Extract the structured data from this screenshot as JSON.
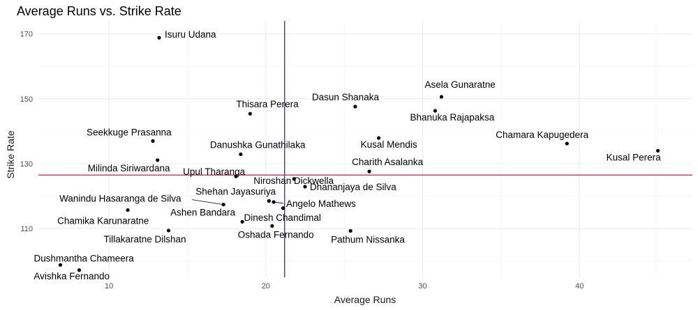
{
  "chart_data": {
    "type": "scatter",
    "title": "Average Runs vs. Strike Rate",
    "xlabel": "Average Runs",
    "ylabel": "Strike Rate",
    "xlim": [
      5.5,
      47.2
    ],
    "ylim": [
      95,
      174
    ],
    "x_ticks": [
      10,
      20,
      30,
      40
    ],
    "y_ticks": [
      110,
      130,
      150,
      170
    ],
    "grid": true,
    "reference_lines": [
      {
        "orientation": "vertical",
        "value": 21.2,
        "color": "#1f1f8f"
      },
      {
        "orientation": "horizontal",
        "value": 126.5,
        "color": "#c0223b"
      }
    ],
    "points": [
      {
        "name": "Isuru Udana",
        "x": 13.2,
        "y": 168.8
      },
      {
        "name": "Asela Gunaratne",
        "x": 31.2,
        "y": 150.6
      },
      {
        "name": "Dasun Shanaka",
        "x": 25.7,
        "y": 147.6
      },
      {
        "name": "Bhanuka Rajapaksa",
        "x": 30.8,
        "y": 146.3
      },
      {
        "name": "Thisara Perera",
        "x": 19.0,
        "y": 145.4
      },
      {
        "name": "Kusal Mendis",
        "x": 27.2,
        "y": 137.9
      },
      {
        "name": "Seekkuge Prasanna",
        "x": 12.8,
        "y": 137.0
      },
      {
        "name": "Chamara Kapugedera",
        "x": 39.2,
        "y": 136.2
      },
      {
        "name": "Kusal Perera",
        "x": 45.0,
        "y": 134.0
      },
      {
        "name": "Danushka Gunathilaka",
        "x": 18.4,
        "y": 132.9
      },
      {
        "name": "Milinda Siriwardana",
        "x": 13.1,
        "y": 131.1
      },
      {
        "name": "Charith Asalanka",
        "x": 26.6,
        "y": 127.6
      },
      {
        "name": "Upul Tharanga",
        "x": 18.1,
        "y": 126.1
      },
      {
        "name": "Niroshan Dickwella",
        "x": 21.8,
        "y": 125.3
      },
      {
        "name": "Dhananjaya de Silva",
        "x": 22.5,
        "y": 122.9
      },
      {
        "name": "Shehan Jayasuriya",
        "x": 20.2,
        "y": 118.5
      },
      {
        "name": "Angelo Mathews",
        "x": 20.5,
        "y": 118.2
      },
      {
        "name": "Wanindu Hasaranga de Silva",
        "x": 17.3,
        "y": 117.4
      },
      {
        "name": "Dinesh Chandimal",
        "x": 21.1,
        "y": 116.3
      },
      {
        "name": "Chamika Karunaratne",
        "x": 11.2,
        "y": 115.7
      },
      {
        "name": "Ashen Bandara",
        "x": 18.5,
        "y": 112.1
      },
      {
        "name": "Oshada Fernando",
        "x": 20.4,
        "y": 110.8
      },
      {
        "name": "Pathum Nissanka",
        "x": 25.4,
        "y": 109.3
      },
      {
        "name": "Tillakaratne Dilshan",
        "x": 13.8,
        "y": 109.4
      },
      {
        "name": "Dushmantha Chameera",
        "x": 6.9,
        "y": 98.8
      },
      {
        "name": "Avishka Fernando",
        "x": 8.1,
        "y": 97.2
      }
    ]
  }
}
